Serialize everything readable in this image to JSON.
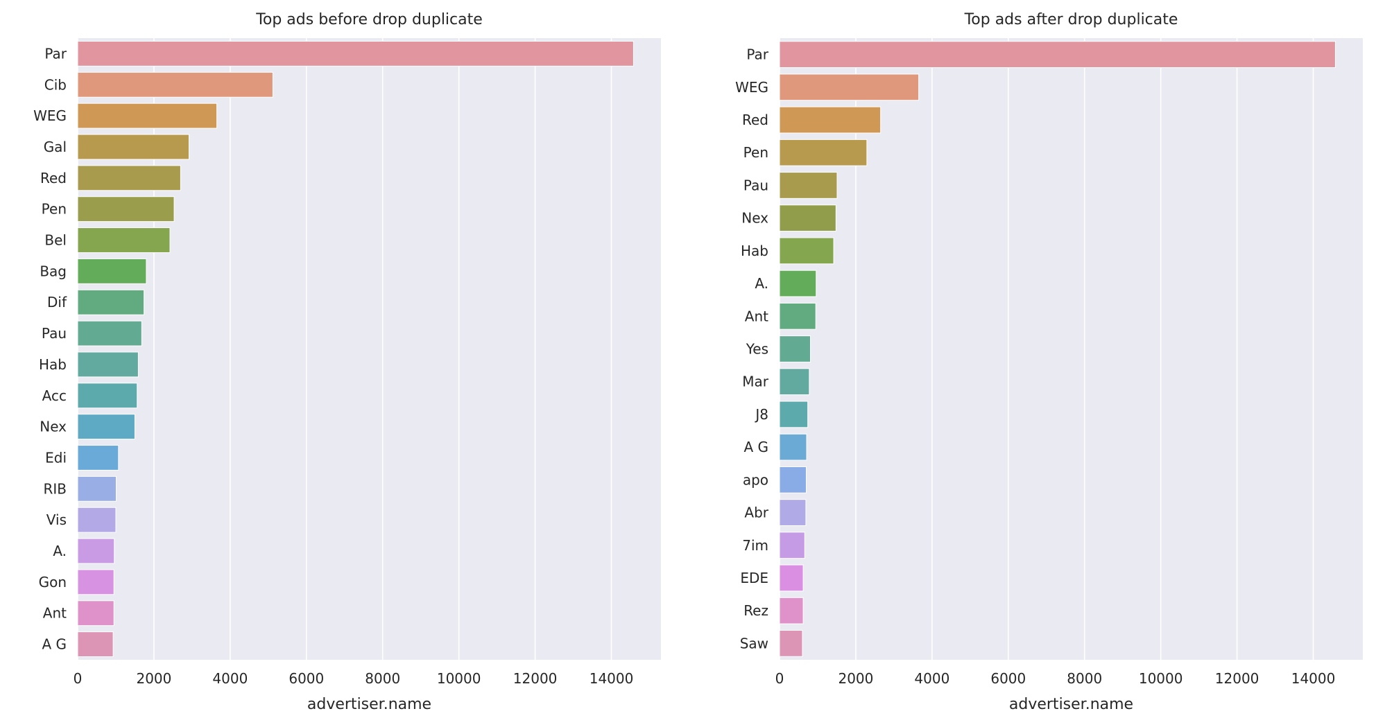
{
  "chart_data": [
    {
      "type": "bar",
      "orientation": "horizontal",
      "title": "Top ads before drop duplicate",
      "xlabel": "advertiser.name",
      "ylabel": "",
      "xlim": [
        0,
        15300
      ],
      "xticks": [
        0,
        2000,
        4000,
        6000,
        8000,
        10000,
        12000,
        14000
      ],
      "grid": true,
      "categories": [
        "Par",
        "Cib",
        "WEG",
        "Gal",
        "Red",
        "Pen",
        "Bel",
        "Bag",
        "Dif",
        "Pau",
        "Hab",
        "Acc",
        "Nex",
        "Edi",
        "RIB",
        "Vis",
        "A.",
        "Gon",
        "Ant",
        "A G"
      ],
      "values": [
        14580,
        5120,
        3650,
        2920,
        2700,
        2530,
        2420,
        1800,
        1740,
        1680,
        1590,
        1560,
        1500,
        1070,
        1010,
        1000,
        960,
        950,
        950,
        930
      ],
      "colors": [
        "#e1969f",
        "#e0987d",
        "#cf9855",
        "#b89a4f",
        "#a89b4e",
        "#9a9d4c",
        "#86a54f",
        "#63ac5a",
        "#62aa7f",
        "#63aa92",
        "#62a9a0",
        "#5daaad",
        "#5ea9c4",
        "#6aaad8",
        "#9aaee6",
        "#b3a9e7",
        "#c99be5",
        "#d892e2",
        "#de92c9",
        "#dd95b5"
      ]
    },
    {
      "type": "bar",
      "orientation": "horizontal",
      "title": "Top ads after drop duplicate",
      "xlabel": "advertiser.name",
      "ylabel": "",
      "xlim": [
        0,
        15300
      ],
      "xticks": [
        0,
        2000,
        4000,
        6000,
        8000,
        10000,
        12000,
        14000
      ],
      "grid": true,
      "categories": [
        "Par",
        "WEG",
        "Red",
        "Pen",
        "Pau",
        "Nex",
        "Hab",
        "A.",
        "Ant",
        "Yes",
        "Mar",
        "J8",
        "A G",
        "apo",
        "Abr",
        "7im",
        "EDE",
        "Rez",
        "Saw"
      ],
      "values": [
        14580,
        3650,
        2650,
        2290,
        1510,
        1480,
        1420,
        960,
        950,
        810,
        780,
        740,
        710,
        700,
        690,
        660,
        620,
        620,
        600
      ],
      "colors": [
        "#e1969f",
        "#e0987d",
        "#cf9855",
        "#b89a4f",
        "#a89b4e",
        "#929d4c",
        "#83a64f",
        "#62ac5a",
        "#62aa7f",
        "#63aa92",
        "#62a9a0",
        "#5daaad",
        "#6aaad4",
        "#8aace6",
        "#b0aae7",
        "#c59be5",
        "#da8fe2",
        "#de92c9",
        "#dd95b5"
      ]
    }
  ]
}
